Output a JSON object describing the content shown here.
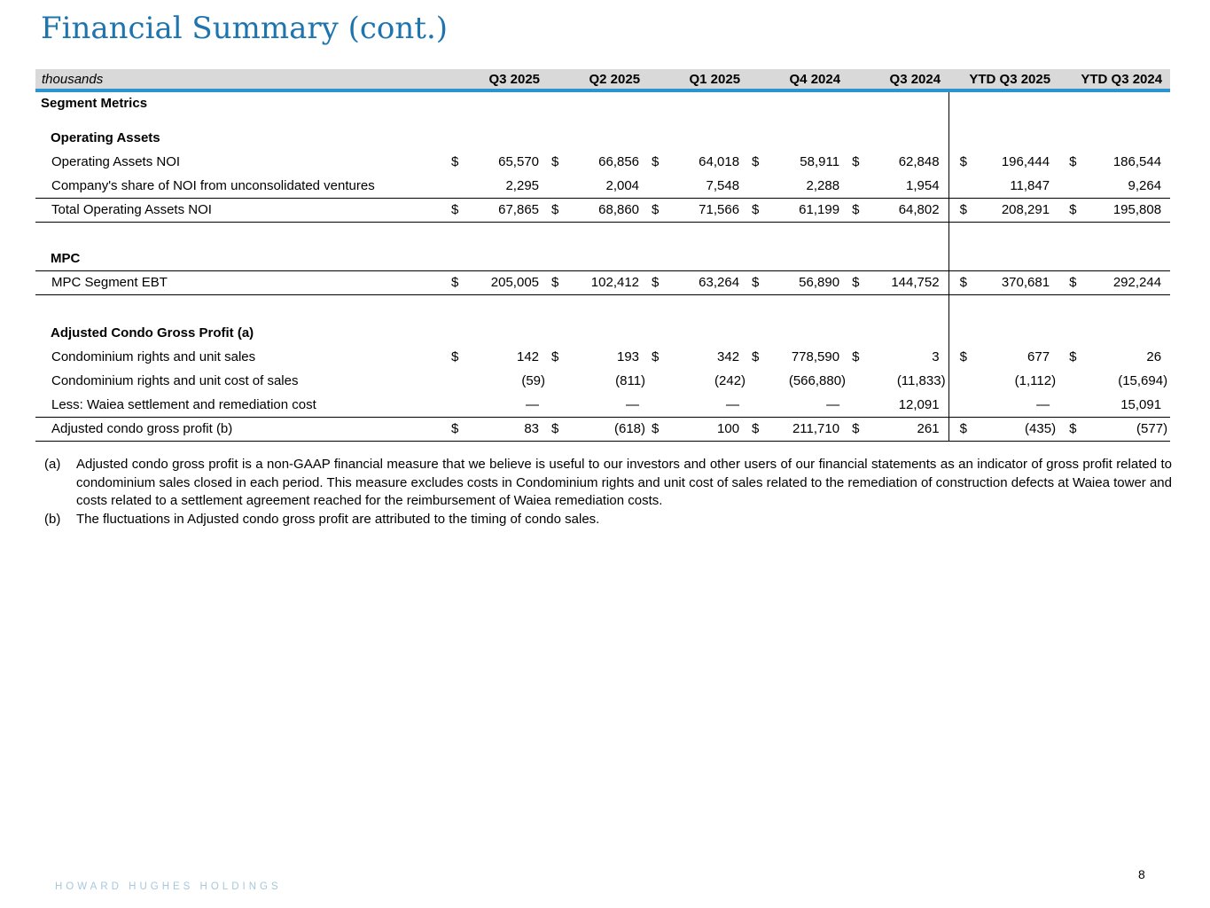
{
  "page": {
    "title": "Financial Summary (cont.)",
    "page_number": "8",
    "footer_brand": "HOWARD HUGHES HOLDINGS"
  },
  "colors": {
    "title_blue": "#1E74AD",
    "header_bar_bg": "#D9D9D9",
    "header_rule_blue": "#2B93CF",
    "footer_brand_blue": "#A6C8DC",
    "table_line": "#000000"
  },
  "table": {
    "unit_label": "thousands",
    "currency_symbol": "$",
    "columns": [
      "Q3 2025",
      "Q2 2025",
      "Q1 2025",
      "Q4 2024",
      "Q3 2024",
      "YTD Q3 2025",
      "YTD Q3 2024"
    ],
    "rows": [
      {
        "type": "section",
        "label": "Segment Metrics"
      },
      {
        "type": "spacer",
        "h": 13
      },
      {
        "type": "group",
        "label": "Operating Assets"
      },
      {
        "type": "data",
        "label": "Operating Assets NOI",
        "dollar": true,
        "values": [
          "65,570",
          "66,856",
          "64,018",
          "58,911",
          "62,848",
          "196,444",
          "186,544"
        ]
      },
      {
        "type": "data",
        "label": "Company's share of NOI from unconsolidated ventures",
        "dollar": false,
        "border_bottom": true,
        "values": [
          "2,295",
          "2,004",
          "7,548",
          "2,288",
          "1,954",
          "11,847",
          "9,264"
        ]
      },
      {
        "type": "data",
        "label": "Total Operating Assets NOI",
        "dollar": true,
        "border_bottom": true,
        "values": [
          "67,865",
          "68,860",
          "71,566",
          "61,199",
          "64,802",
          "208,291",
          "195,808"
        ]
      },
      {
        "type": "spacer",
        "h": 28
      },
      {
        "type": "group",
        "label": "MPC"
      },
      {
        "type": "data",
        "label": "MPC Segment EBT",
        "dollar": true,
        "border_top": true,
        "border_bottom": true,
        "values": [
          "205,005",
          "102,412",
          "63,264",
          "56,890",
          "144,752",
          "370,681",
          "292,244"
        ]
      },
      {
        "type": "spacer",
        "h": 30
      },
      {
        "type": "group",
        "label": "Adjusted Condo Gross Profit (a)"
      },
      {
        "type": "data",
        "label": "Condominium rights and unit sales",
        "dollar": true,
        "values": [
          "142",
          "193",
          "342",
          "778,590",
          "3",
          "677",
          "26"
        ]
      },
      {
        "type": "data",
        "label": "Condominium rights and unit cost of sales",
        "dollar": false,
        "values": [
          "(59)",
          "(811)",
          "(242)",
          "(566,880)",
          "(11,833)",
          "(1,112)",
          "(15,694)"
        ]
      },
      {
        "type": "data",
        "label": "Less: Waiea settlement and remediation cost",
        "dollar": false,
        "border_bottom": true,
        "values": [
          "—",
          "—",
          "—",
          "—",
          "12,091",
          "—",
          "15,091"
        ]
      },
      {
        "type": "data",
        "label": "Adjusted condo gross profit (b)",
        "dollar": true,
        "border_bottom": true,
        "values": [
          "83",
          "(618)",
          "100",
          "211,710",
          "261",
          "(435)",
          "(577)"
        ]
      }
    ]
  },
  "footnotes": [
    {
      "marker": "(a)",
      "text": "Adjusted condo gross profit is a non-GAAP financial measure that we believe is useful to our investors and other users of our financial statements as an indicator of gross profit related to condominium sales closed in each period. This measure excludes costs in Condominium rights and unit cost of sales related to the remediation of construction defects at Waiea tower and costs related to a settlement agreement reached for the reimbursement of Waiea remediation costs."
    },
    {
      "marker": "(b)",
      "text": "The fluctuations in Adjusted condo gross profit are attributed to the timing of condo sales."
    }
  ]
}
